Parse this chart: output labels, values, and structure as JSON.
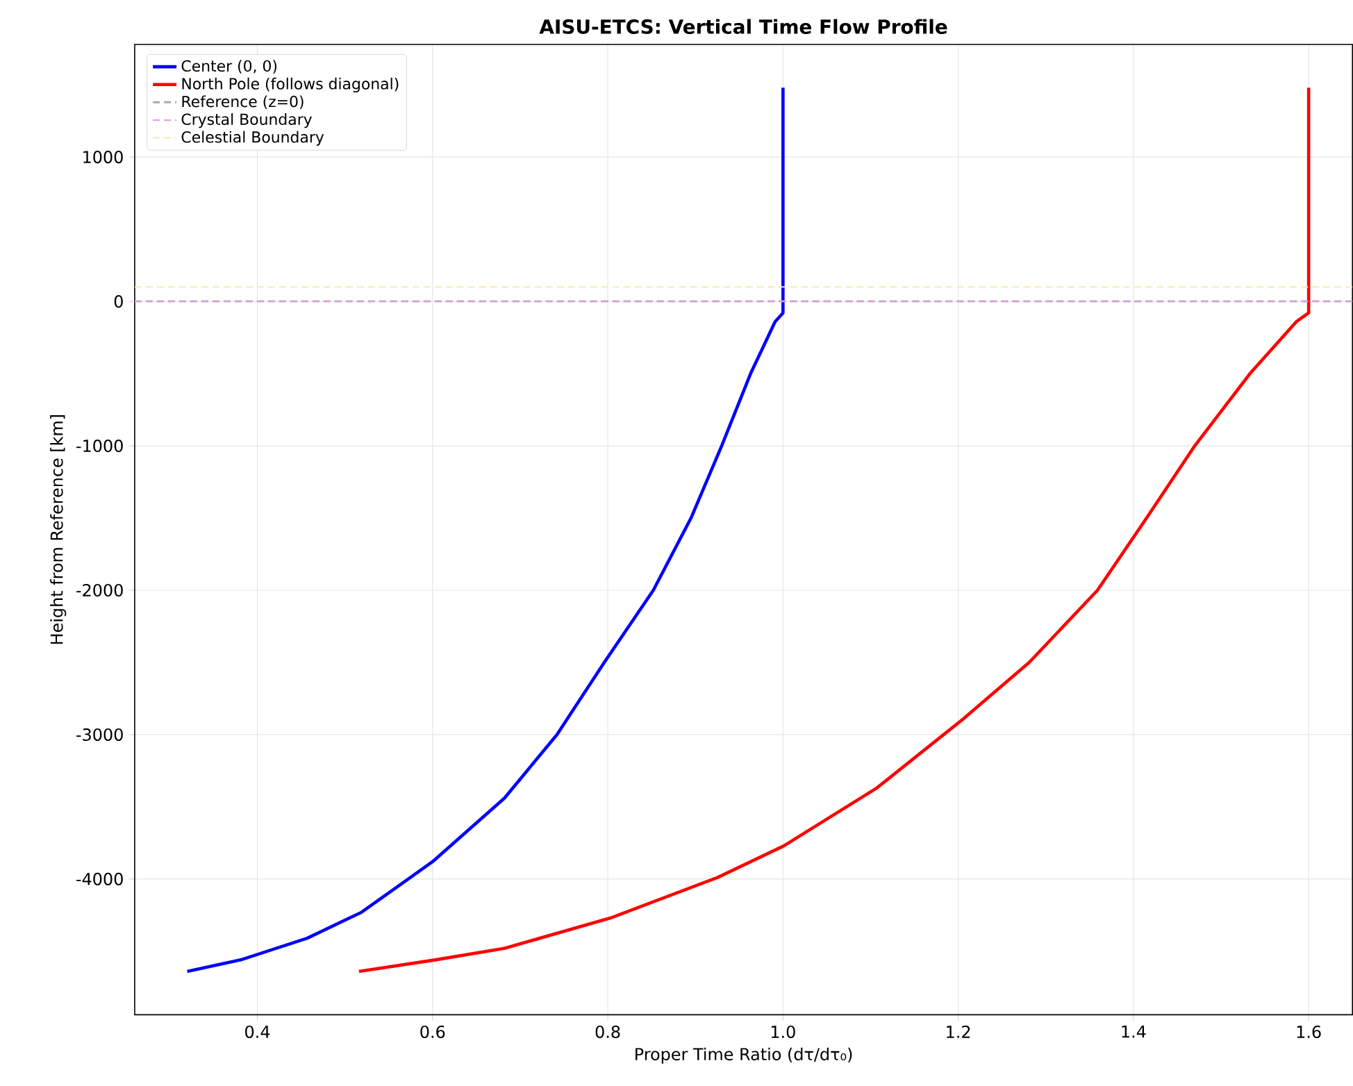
{
  "chart_data": {
    "type": "line",
    "title": "AISU-ETCS: Vertical Time Flow Profile",
    "xlabel": "Proper Time Ratio (dτ/dτ₀)",
    "ylabel": "Height from Reference [km]",
    "xlim": [
      0.26,
      1.65
    ],
    "ylim": [
      -4940,
      1780
    ],
    "xticks": [
      0.4,
      0.6,
      0.8,
      {
        "value": 1.0,
        "label": "1.0"
      },
      1.2,
      1.4,
      1.6
    ],
    "yticks": [
      -4000,
      -3000,
      -2000,
      -1000,
      0,
      1000
    ],
    "grid": true,
    "legend": "top left",
    "line_style": "solid",
    "marker": "none",
    "series": [
      {
        "name": "Center (0, 0)",
        "color": "#0000ff",
        "x": [
          0.32,
          0.381,
          0.457,
          0.519,
          0.6,
          0.682,
          0.742,
          0.796,
          0.852,
          0.895,
          0.93,
          0.963,
          0.991,
          1.0,
          1.0
        ],
        "values": [
          -4640,
          -4560,
          -4410,
          -4230,
          -3880,
          -3440,
          -3000,
          -2500,
          -2000,
          -1500,
          -1000,
          -500,
          -140,
          -80,
          1480
        ]
      },
      {
        "name": "North Pole (follows diagonal)",
        "color": "#ff0000",
        "x": [
          0.516,
          0.603,
          0.682,
          0.803,
          0.925,
          1.001,
          1.107,
          1.204,
          1.281,
          1.359,
          1.415,
          1.47,
          1.533,
          1.586,
          1.6,
          1.6
        ],
        "values": [
          -4640,
          -4560,
          -4480,
          -4270,
          -3990,
          -3770,
          -3370,
          -2900,
          -2500,
          -2000,
          -1500,
          -1000,
          -500,
          -140,
          -80,
          1480
        ]
      }
    ],
    "ref_lines": [
      {
        "axis": "y",
        "value": 0,
        "label": "Reference (z=0)",
        "color": "#a8a8a8",
        "line_style": "dashed"
      },
      {
        "axis": "y",
        "value": 0,
        "label": "Crystal Boundary",
        "color": "#dda0dd",
        "line_style": "dashed"
      },
      {
        "axis": "y",
        "value": 100,
        "label": "Celestial Boundary",
        "color": "#f3ebb0",
        "line_style": "dashed"
      }
    ]
  }
}
